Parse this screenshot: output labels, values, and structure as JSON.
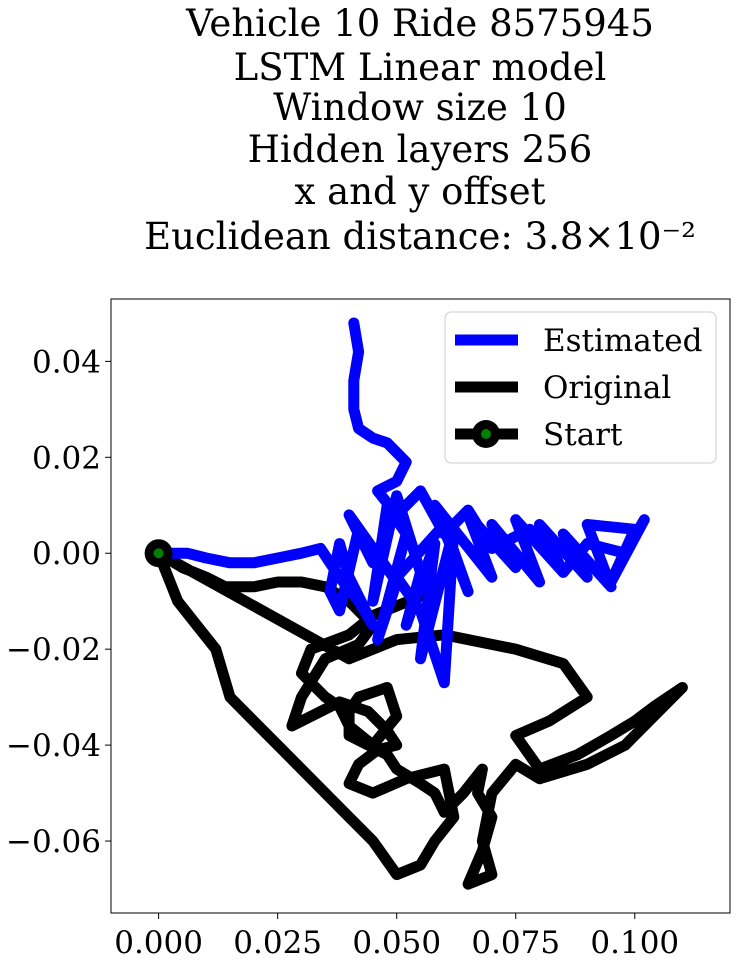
{
  "chart_data": {
    "type": "line",
    "title_lines": [
      "Vehicle 10 Ride 8575945",
      "LSTM Linear model",
      "Window size 10",
      "Hidden layers 256",
      "x and y offset",
      "Euclidean distance: 3.8×10⁻²"
    ],
    "xlabel": "",
    "ylabel": "",
    "xlim": [
      -0.01,
      0.12
    ],
    "ylim": [
      -0.075,
      0.053
    ],
    "xticks": [
      0.0,
      0.025,
      0.05,
      0.075,
      0.1
    ],
    "xtick_labels": [
      "0.000",
      "0.025",
      "0.050",
      "0.075",
      "0.100"
    ],
    "yticks": [
      -0.06,
      -0.04,
      -0.02,
      0.0,
      0.02,
      0.04
    ],
    "ytick_labels": [
      "−0.06",
      "−0.04",
      "−0.02",
      "0.00",
      "0.02",
      "0.04"
    ],
    "grid": false,
    "legend_position": "top-right",
    "legend": [
      "Estimated",
      "Original",
      "Start"
    ],
    "colors": {
      "estimated": "#0000ff",
      "original": "#000000",
      "start_marker": "#000000",
      "start_fill": "#008000"
    },
    "start_point": {
      "x": 0.0,
      "y": 0.0
    },
    "series": [
      {
        "name": "Estimated",
        "x": [
          0.0,
          0.003,
          0.006,
          0.01,
          0.015,
          0.02,
          0.025,
          0.03,
          0.034,
          0.038,
          0.042,
          0.045,
          0.04,
          0.038,
          0.036,
          0.038,
          0.042,
          0.045,
          0.04,
          0.05,
          0.046,
          0.052,
          0.048,
          0.045,
          0.05,
          0.055,
          0.052,
          0.058,
          0.055,
          0.062,
          0.06,
          0.055,
          0.05,
          0.06,
          0.065,
          0.058,
          0.07,
          0.065,
          0.075,
          0.07,
          0.08,
          0.075,
          0.085,
          0.08,
          0.09,
          0.085,
          0.095,
          0.09,
          0.1,
          0.095,
          0.102,
          0.098,
          0.09,
          0.085,
          0.078,
          0.07,
          0.065,
          0.06,
          0.055,
          0.05,
          0.046,
          0.05,
          0.052,
          0.05,
          0.048,
          0.045,
          0.042,
          0.041,
          0.041,
          0.042,
          0.041
        ],
        "y": [
          0.0,
          0.0,
          0.0,
          -0.001,
          -0.002,
          -0.002,
          -0.001,
          0.0,
          0.001,
          -0.005,
          -0.01,
          -0.015,
          -0.005,
          0.002,
          -0.008,
          -0.012,
          0.005,
          -0.002,
          0.008,
          -0.006,
          -0.018,
          0.004,
          0.01,
          -0.01,
          0.012,
          -0.004,
          -0.015,
          0.002,
          -0.022,
          0.005,
          -0.027,
          -0.012,
          -0.005,
          0.006,
          -0.008,
          0.01,
          -0.005,
          0.008,
          -0.003,
          0.006,
          -0.006,
          0.007,
          -0.004,
          0.006,
          -0.005,
          0.004,
          -0.007,
          0.006,
          0.005,
          -0.006,
          0.007,
          0.0,
          0.002,
          -0.004,
          0.005,
          0.001,
          0.009,
          0.004,
          0.013,
          0.008,
          0.013,
          0.015,
          0.019,
          0.021,
          0.023,
          0.024,
          0.026,
          0.03,
          0.036,
          0.042,
          0.048
        ]
      },
      {
        "name": "Original",
        "x": [
          0.0,
          0.005,
          0.01,
          0.014,
          0.02,
          0.025,
          0.03,
          0.035,
          0.04,
          0.045,
          0.042,
          0.035,
          0.03,
          0.028,
          0.032,
          0.038,
          0.044,
          0.048,
          0.05,
          0.046,
          0.042,
          0.04,
          0.045,
          0.052,
          0.06,
          0.062,
          0.058,
          0.055,
          0.05,
          0.045,
          0.04,
          0.035,
          0.03,
          0.025,
          0.02,
          0.015,
          0.012,
          0.008,
          0.004,
          0.0,
          0.04,
          0.05,
          0.06,
          0.075,
          0.085,
          0.09,
          0.082,
          0.075,
          0.08,
          0.088,
          0.095,
          0.1,
          0.104,
          0.11,
          0.098,
          0.09,
          0.08,
          0.075,
          0.07,
          0.068,
          0.07,
          0.065,
          0.068,
          0.07,
          0.067,
          0.068,
          0.064,
          0.06,
          0.058,
          0.055,
          0.05,
          0.048,
          0.04,
          0.04,
          0.042,
          0.048,
          0.05,
          0.045,
          0.04,
          0.038,
          0.035,
          0.03,
          0.032,
          0.04,
          0.045,
          0.05,
          0.055,
          0.058
        ],
        "y": [
          0.0,
          -0.003,
          -0.005,
          -0.007,
          -0.007,
          -0.006,
          -0.006,
          -0.007,
          -0.01,
          -0.015,
          -0.019,
          -0.022,
          -0.03,
          -0.036,
          -0.034,
          -0.031,
          -0.033,
          -0.037,
          -0.04,
          -0.041,
          -0.044,
          -0.048,
          -0.05,
          -0.047,
          -0.045,
          -0.055,
          -0.06,
          -0.065,
          -0.067,
          -0.06,
          -0.055,
          -0.05,
          -0.045,
          -0.04,
          -0.035,
          -0.03,
          -0.02,
          -0.015,
          -0.01,
          0.0,
          -0.022,
          -0.018,
          -0.017,
          -0.02,
          -0.023,
          -0.03,
          -0.035,
          -0.038,
          -0.045,
          -0.042,
          -0.038,
          -0.035,
          -0.032,
          -0.028,
          -0.04,
          -0.044,
          -0.047,
          -0.044,
          -0.05,
          -0.06,
          -0.067,
          -0.069,
          -0.062,
          -0.055,
          -0.05,
          -0.045,
          -0.05,
          -0.054,
          -0.05,
          -0.048,
          -0.045,
          -0.042,
          -0.038,
          -0.033,
          -0.03,
          -0.028,
          -0.034,
          -0.04,
          -0.036,
          -0.032,
          -0.03,
          -0.025,
          -0.02,
          -0.017,
          -0.013,
          -0.011,
          -0.009,
          -0.007
        ]
      }
    ]
  }
}
